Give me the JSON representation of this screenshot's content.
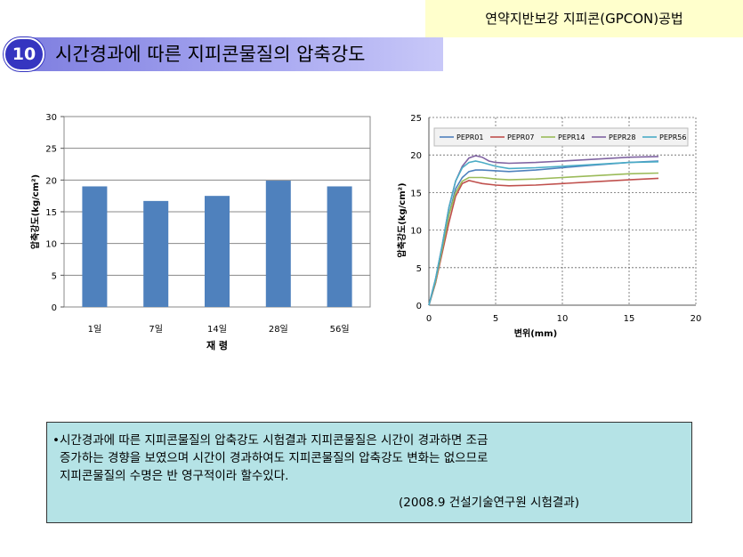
{
  "banner": "연약지반보강 지피콘(GPCON)공법",
  "section": {
    "number": "10",
    "title": "시간경과에 따른 지피콘물질의 압축강도"
  },
  "chart_data": [
    {
      "type": "bar",
      "categories": [
        "1일",
        "7일",
        "14일",
        "28일",
        "56일"
      ],
      "values": [
        19,
        16.7,
        17.5,
        19.9,
        19
      ],
      "xlabel": "재 령",
      "ylabel": "압축강도(kg/cm²)",
      "ylim": [
        0,
        30
      ],
      "yticks": [
        "0",
        "5",
        "10",
        "15",
        "20",
        "25",
        "30"
      ],
      "grid": true,
      "colors": {
        "bar": "#4f81bd"
      }
    },
    {
      "type": "line",
      "xlabel": "변위(mm)",
      "ylabel": "압축강도(kg/cm²)",
      "xlim": [
        0,
        20
      ],
      "ylim": [
        0,
        25
      ],
      "xticks": [
        "0",
        "5",
        "10",
        "15",
        "20"
      ],
      "yticks": [
        "0",
        "5",
        "10",
        "15",
        "20",
        "25"
      ],
      "grid": true,
      "legend": "top",
      "series": [
        {
          "name": "PEPR01",
          "color": "#4f81bd",
          "points": [
            [
              0,
              0
            ],
            [
              0.5,
              3
            ],
            [
              1,
              7.5
            ],
            [
              1.5,
              12
            ],
            [
              2,
              15.5
            ],
            [
              2.5,
              17
            ],
            [
              3,
              17.8
            ],
            [
              3.5,
              18
            ],
            [
              4,
              18
            ],
            [
              5,
              17.9
            ],
            [
              6,
              17.8
            ],
            [
              8,
              18
            ],
            [
              10,
              18.3
            ],
            [
              12,
              18.6
            ],
            [
              15,
              19
            ],
            [
              17.2,
              19.2
            ]
          ]
        },
        {
          "name": "PEPR07",
          "color": "#c0504d",
          "points": [
            [
              0,
              0
            ],
            [
              0.5,
              3
            ],
            [
              1,
              7
            ],
            [
              1.5,
              11
            ],
            [
              2,
              14.5
            ],
            [
              2.5,
              16.2
            ],
            [
              3,
              16.6
            ],
            [
              3.5,
              16.4
            ],
            [
              4,
              16.2
            ],
            [
              5,
              16
            ],
            [
              6,
              15.9
            ],
            [
              8,
              16
            ],
            [
              10,
              16.2
            ],
            [
              12,
              16.4
            ],
            [
              15,
              16.7
            ],
            [
              17.2,
              16.9
            ]
          ]
        },
        {
          "name": "PEPR14",
          "color": "#9bbb59",
          "points": [
            [
              0,
              0
            ],
            [
              0.5,
              3.2
            ],
            [
              1,
              7.5
            ],
            [
              1.5,
              12
            ],
            [
              2,
              15
            ],
            [
              2.5,
              16.5
            ],
            [
              3,
              17
            ],
            [
              3.5,
              17
            ],
            [
              4,
              17
            ],
            [
              5,
              16.8
            ],
            [
              6,
              16.7
            ],
            [
              8,
              16.8
            ],
            [
              10,
              17
            ],
            [
              12,
              17.2
            ],
            [
              15,
              17.5
            ],
            [
              17.2,
              17.6
            ]
          ]
        },
        {
          "name": "PEPR28",
          "color": "#8064a2",
          "points": [
            [
              0,
              0
            ],
            [
              0.5,
              3.5
            ],
            [
              1,
              8
            ],
            [
              1.5,
              13
            ],
            [
              2,
              16.5
            ],
            [
              2.5,
              18.5
            ],
            [
              3,
              19.6
            ],
            [
              3.5,
              19.9
            ],
            [
              4,
              19.7
            ],
            [
              4.5,
              19.2
            ],
            [
              5,
              19
            ],
            [
              6,
              18.9
            ],
            [
              8,
              19
            ],
            [
              10,
              19.2
            ],
            [
              12,
              19.4
            ],
            [
              15,
              19.7
            ],
            [
              17.2,
              19.8
            ]
          ]
        },
        {
          "name": "PEPR56",
          "color": "#4bacc6",
          "points": [
            [
              0,
              0
            ],
            [
              0.5,
              3.5
            ],
            [
              1,
              8
            ],
            [
              1.5,
              13
            ],
            [
              2,
              16.5
            ],
            [
              2.5,
              18.3
            ],
            [
              3,
              19
            ],
            [
              3.5,
              19.2
            ],
            [
              4,
              19
            ],
            [
              5,
              18.5
            ],
            [
              6,
              18.2
            ],
            [
              8,
              18.3
            ],
            [
              10,
              18.5
            ],
            [
              12,
              18.7
            ],
            [
              15,
              19
            ],
            [
              17.2,
              19.1
            ]
          ]
        }
      ]
    }
  ],
  "note": {
    "line1": "•시간경과에 따른 지피콘물질의 압축강도 시험결과 지피콘물질은 시간이 경과하면 조금",
    "line2": "증가하는 경향을 보였으며 시간이 경과하여도 지피콘물질의 압축강도 변화는 없으므로",
    "line3": "지피콘물질의 수명은 반 영구적이라 할수있다.",
    "source": "(2008.9 건설기술연구원 시험결과)"
  }
}
